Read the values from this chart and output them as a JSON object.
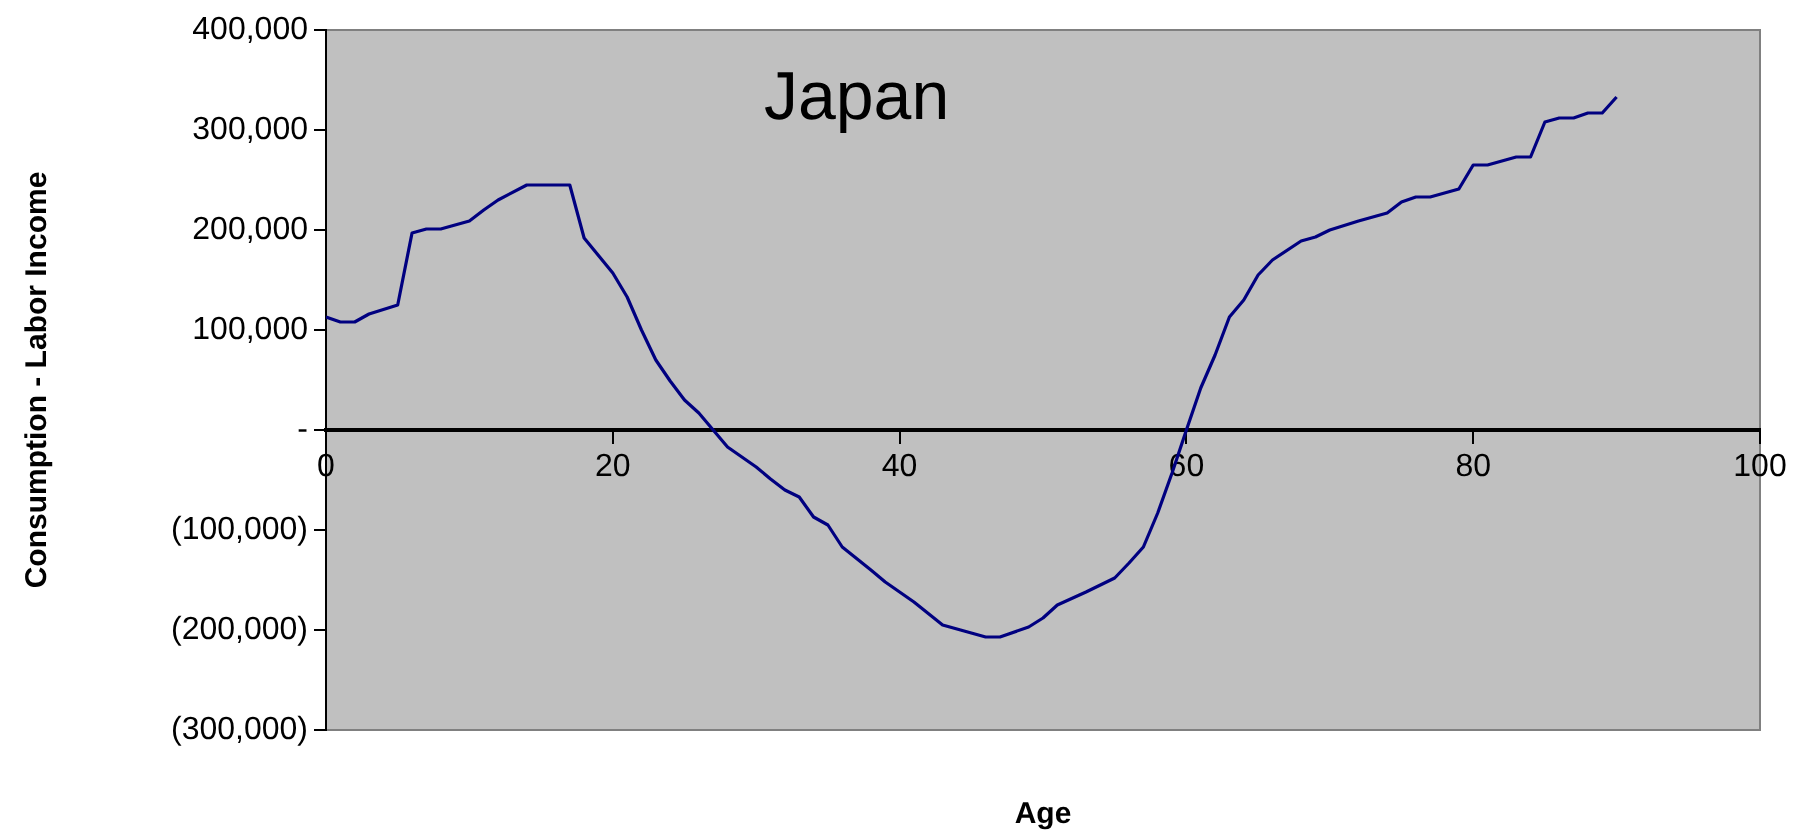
{
  "chart_data": {
    "type": "line",
    "title": "Japan",
    "xlabel": "Age",
    "ylabel": "Consumption - Labor Income",
    "x": [
      0,
      1,
      2,
      3,
      5,
      6,
      7,
      8,
      10,
      11,
      12,
      14,
      15,
      16,
      17,
      18,
      20,
      21,
      22,
      23,
      24,
      25,
      26,
      27,
      28,
      30,
      31,
      32,
      33,
      34,
      35,
      36,
      38,
      39,
      41,
      43,
      45,
      46,
      47,
      49,
      50,
      51,
      53,
      55,
      56,
      57,
      58,
      59,
      60,
      61,
      62,
      63,
      64,
      65,
      66,
      68,
      69,
      70,
      72,
      74,
      75,
      76,
      77,
      79,
      80,
      81,
      83,
      84,
      85,
      86,
      87,
      88,
      89,
      90
    ],
    "series": [
      {
        "color": "#000080",
        "values": [
          113000,
          108000,
          108000,
          116000,
          125000,
          197000,
          201000,
          201000,
          209000,
          220000,
          230000,
          245000,
          245000,
          245000,
          245000,
          192000,
          157000,
          133000,
          100000,
          70000,
          49000,
          30000,
          17000,
          0,
          -17000,
          -37000,
          -49000,
          -60000,
          -67000,
          -87000,
          -95000,
          -117000,
          -140000,
          -152000,
          -172000,
          -195000,
          -203000,
          -207000,
          -207000,
          -197000,
          -188000,
          -175000,
          -162000,
          -148000,
          -133000,
          -117000,
          -83000,
          -43000,
          0,
          42000,
          75000,
          113000,
          130000,
          155000,
          170000,
          189000,
          193000,
          200000,
          209000,
          217000,
          228000,
          233000,
          233000,
          241000,
          265000,
          265000,
          273000,
          273000,
          308000,
          312000,
          312000,
          317000,
          317000,
          333000
        ]
      }
    ],
    "xlim": [
      0,
      100
    ],
    "xticks": [
      0,
      20,
      40,
      60,
      80,
      100
    ],
    "ylim": [
      -300000,
      400000
    ],
    "yticks": [
      {
        "value": -300000,
        "label": "(300,000)"
      },
      {
        "value": -200000,
        "label": "(200,000)"
      },
      {
        "value": -100000,
        "label": "(100,000)"
      },
      {
        "value": 0,
        "label": "-"
      },
      {
        "value": 100000,
        "label": "100,000"
      },
      {
        "value": 200000,
        "label": "200,000"
      },
      {
        "value": 300000,
        "label": "300,000"
      },
      {
        "value": 400000,
        "label": "400,000"
      }
    ],
    "grid": false,
    "legend": false,
    "marker": "none",
    "line_style": "solid"
  }
}
